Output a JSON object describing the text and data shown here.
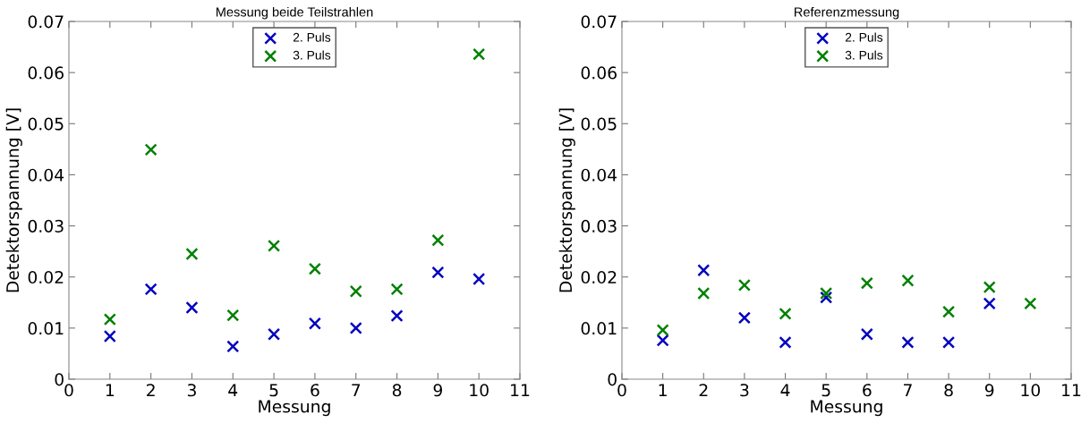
{
  "chart_data": [
    {
      "type": "scatter",
      "title": "Messung beide Teilstrahlen",
      "xlabel": "Messung",
      "ylabel": "Detektorspannung [V]",
      "x": [
        1,
        2,
        3,
        4,
        5,
        6,
        7,
        8,
        9,
        10
      ],
      "xlim": [
        0,
        11
      ],
      "xticks": [
        0,
        1,
        2,
        3,
        4,
        5,
        6,
        7,
        8,
        9,
        10,
        11
      ],
      "ylim": [
        0,
        0.07
      ],
      "yticks": [
        0,
        0.01,
        0.02,
        0.03,
        0.04,
        0.05,
        0.06,
        0.07
      ],
      "marker": "cross",
      "legend": "top",
      "grid": false,
      "series": [
        {
          "name": "2. Puls",
          "color": "#0000c0",
          "values": [
            0.0084,
            0.0176,
            0.014,
            0.0064,
            0.0088,
            0.0109,
            0.01,
            0.0124,
            0.0209,
            0.0196
          ]
        },
        {
          "name": "3. Puls",
          "color": "#008000",
          "values": [
            0.0117,
            0.0449,
            0.0245,
            0.0125,
            0.0261,
            0.0216,
            0.0172,
            0.0176,
            0.0272,
            0.0636
          ]
        }
      ]
    },
    {
      "type": "scatter",
      "title": "Referenzmessung",
      "xlabel": "Messung",
      "ylabel": "Detektorspannung [V]",
      "x": [
        1,
        2,
        3,
        4,
        5,
        6,
        7,
        8,
        9,
        10
      ],
      "xlim": [
        0,
        11
      ],
      "xticks": [
        0,
        1,
        2,
        3,
        4,
        5,
        6,
        7,
        8,
        9,
        10,
        11
      ],
      "ylim": [
        0,
        0.07
      ],
      "yticks": [
        0,
        0.01,
        0.02,
        0.03,
        0.04,
        0.05,
        0.06,
        0.07
      ],
      "marker": "cross",
      "legend": "top",
      "grid": false,
      "series": [
        {
          "name": "2. Puls",
          "color": "#0000c0",
          "values": [
            0.0076,
            0.0213,
            0.012,
            0.0072,
            0.016,
            0.0088,
            0.0072,
            0.0072,
            0.0148,
            null
          ]
        },
        {
          "name": "3. Puls",
          "color": "#008000",
          "values": [
            0.0096,
            0.0168,
            0.0184,
            0.0128,
            0.0168,
            0.0188,
            0.0193,
            0.0132,
            0.018,
            0.0148
          ]
        }
      ]
    }
  ]
}
